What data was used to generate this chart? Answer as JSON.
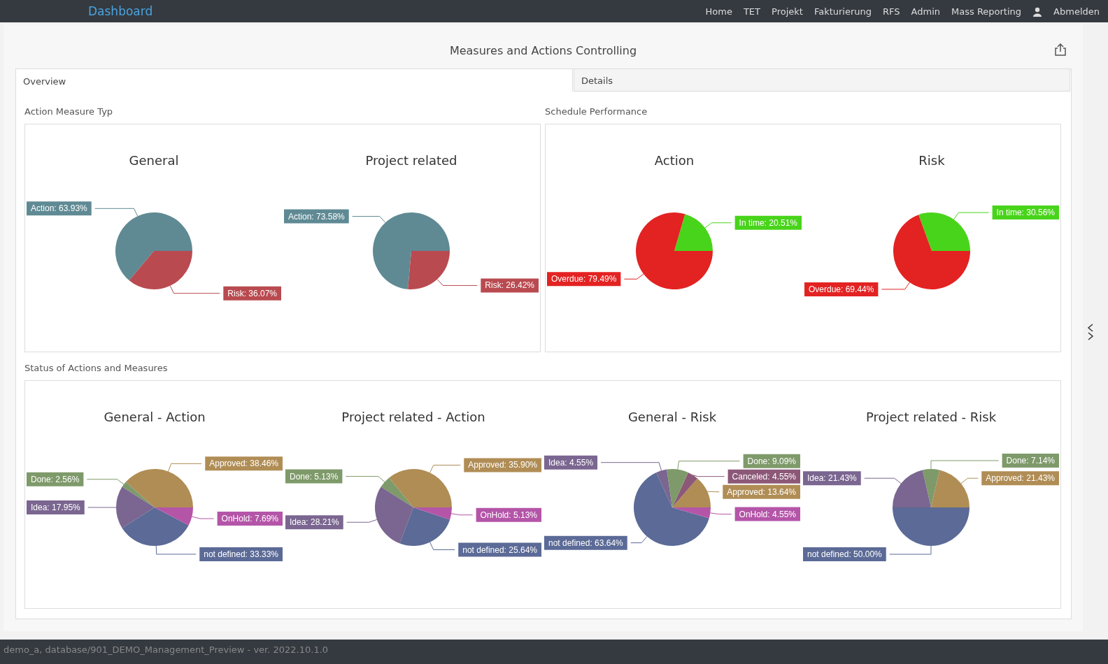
{
  "chart_data": [
    {
      "type": "other",
      "title": "Dashboard",
      "annotations": [
        "Home",
        "TET",
        "Projekt",
        "Fakturierung",
        "RFS",
        "Admin",
        "Mass Reporting",
        "Abmelden"
      ]
    },
    {
      "type": "other",
      "title": "Measures and Actions Controlling",
      "annotations": [
        "Overview",
        "Details"
      ]
    },
    {
      "type": "other",
      "title": "Action Measure Typ"
    },
    {
      "type": "pie",
      "title": "General",
      "categories": [
        "Action",
        "Risk"
      ],
      "values": [
        63.93,
        36.07
      ],
      "colors": [
        "#5f8a94",
        "#b94a50"
      ],
      "value_labels": [
        "63.93%",
        "36.07%"
      ]
    },
    {
      "type": "pie",
      "title": "Project related",
      "categories": [
        "Action",
        "Risk"
      ],
      "values": [
        73.58,
        26.42
      ],
      "colors": [
        "#5f8a94",
        "#b94a50"
      ],
      "value_labels": [
        "73.58%",
        "26.42%"
      ]
    },
    {
      "type": "other",
      "title": "Schedule Performance"
    },
    {
      "type": "pie",
      "title": "Action",
      "categories": [
        "In time",
        "Overdue"
      ],
      "values": [
        20.51,
        79.49
      ],
      "colors": [
        "#48d41a",
        "#e32222"
      ],
      "value_labels": [
        "20.51%",
        "79.49%"
      ]
    },
    {
      "type": "pie",
      "title": "Risk",
      "categories": [
        "In time",
        "Overdue"
      ],
      "values": [
        30.56,
        69.44
      ],
      "colors": [
        "#48d41a",
        "#e32222"
      ],
      "value_labels": [
        "30.56%",
        "69.44%"
      ]
    },
    {
      "type": "other",
      "title": "Status of Actions and Measures"
    },
    {
      "type": "pie",
      "title": "General - Action",
      "categories": [
        "Approved",
        "Done",
        "Idea",
        "not defined",
        "OnHold"
      ],
      "values": [
        38.46,
        2.56,
        17.95,
        33.33,
        7.69
      ],
      "colors": [
        "#b08d55",
        "#7f9a6a",
        "#7a6690",
        "#5b6a96",
        "#b455a8"
      ],
      "value_labels": [
        "38.46%",
        "2.56%",
        "17.95%",
        "33.33%",
        "7.69%"
      ]
    },
    {
      "type": "pie",
      "title": "Project related - Action",
      "categories": [
        "Approved",
        "Done",
        "Idea",
        "not defined",
        "OnHold"
      ],
      "values": [
        35.9,
        5.13,
        28.21,
        25.64,
        5.13
      ],
      "colors": [
        "#b08d55",
        "#7f9a6a",
        "#7a6690",
        "#5b6a96",
        "#b455a8"
      ],
      "value_labels": [
        "35.90%",
        "5.13%",
        "28.21%",
        "25.64%",
        "5.13%"
      ]
    },
    {
      "type": "pie",
      "title": "General - Risk",
      "categories": [
        "Approved",
        "Canceled",
        "Done",
        "Idea",
        "not defined",
        "OnHold"
      ],
      "values": [
        13.64,
        4.55,
        9.09,
        4.55,
        63.64,
        4.55
      ],
      "colors": [
        "#b08d55",
        "#8c5878",
        "#7f9a6a",
        "#7a6690",
        "#5b6a96",
        "#b455a8"
      ],
      "value_labels": [
        "13.64%",
        "4.55%",
        "9.09%",
        "4.55%",
        "63.64%",
        "4.55%"
      ]
    },
    {
      "type": "pie",
      "title": "Project related - Risk",
      "categories": [
        "Approved",
        "Done",
        "Idea",
        "not defined"
      ],
      "values": [
        21.43,
        7.14,
        21.43,
        50.0
      ],
      "colors": [
        "#b08d55",
        "#7f9a6a",
        "#7a6690",
        "#5b6a96"
      ],
      "value_labels": [
        "21.43%",
        "7.14%",
        "21.43%",
        "50.00%"
      ]
    },
    {
      "type": "other",
      "annotations": [
        "demo_a, database/901_DEMO_Management_Preview - ver. 2022.10.1.0"
      ]
    }
  ]
}
